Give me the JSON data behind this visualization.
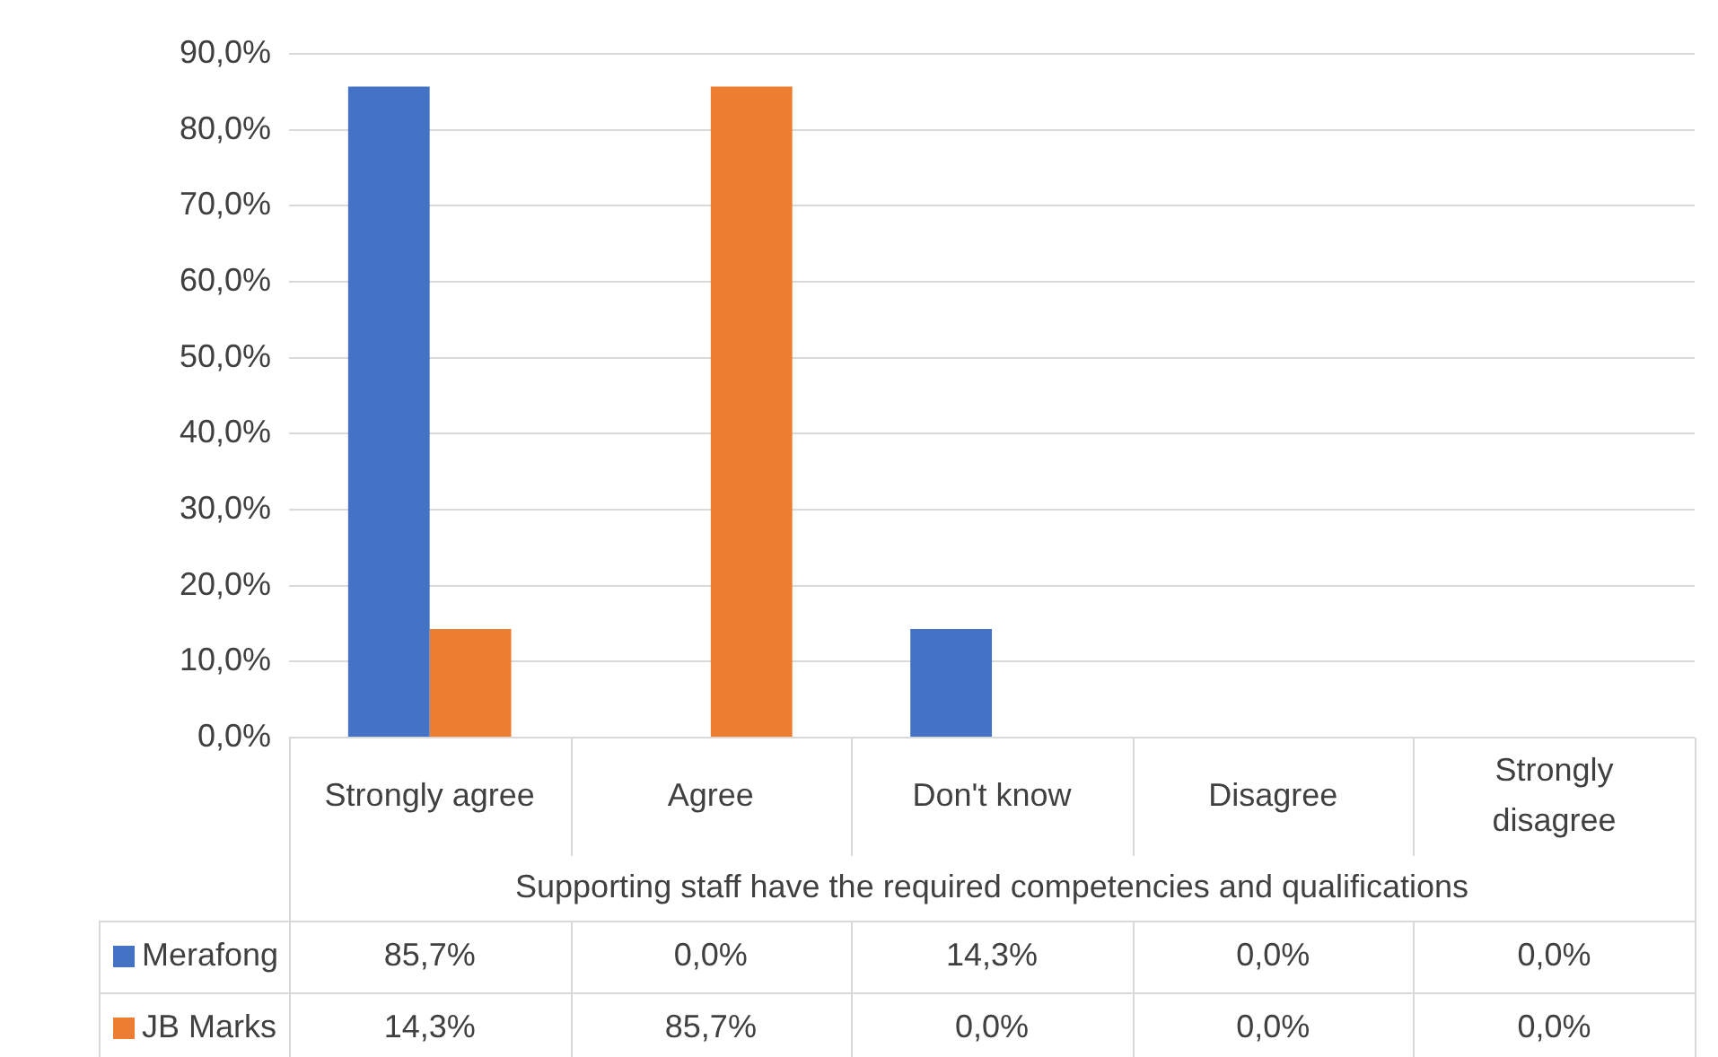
{
  "chart_data": {
    "type": "bar",
    "xlabel": "Supporting staff have the required competencies and qualifications",
    "categories": [
      "Strongly agree",
      "Agree",
      "Don't know",
      "Disagree",
      "Strongly disagree"
    ],
    "series": [
      {
        "name": "Merafong",
        "color": "#4472c4",
        "values": [
          85.7,
          0,
          14.3,
          0,
          0
        ],
        "value_labels": [
          "85,7%",
          "0,0%",
          "14,3%",
          "0,0%",
          "0,0%"
        ]
      },
      {
        "name": "JB Marks",
        "color": "#ed7d31",
        "values": [
          14.3,
          85.7,
          0,
          0,
          0
        ],
        "value_labels": [
          "14,3%",
          "85,7%",
          "0,0%",
          "0,0%",
          "0,0%"
        ]
      }
    ],
    "ylim": [
      0,
      90
    ],
    "yticks": [
      {
        "value": 0,
        "label": "0,0%"
      },
      {
        "value": 10,
        "label": "10,0%"
      },
      {
        "value": 20,
        "label": "20,0%"
      },
      {
        "value": 30,
        "label": "30,0%"
      },
      {
        "value": 40,
        "label": "40,0%"
      },
      {
        "value": 50,
        "label": "50,0%"
      },
      {
        "value": 60,
        "label": "60,0%"
      },
      {
        "value": 70,
        "label": "70,0%"
      },
      {
        "value": 80,
        "label": "80,0%"
      },
      {
        "value": 90,
        "label": "90,0%"
      }
    ],
    "grid": "y",
    "legend": "bottom"
  }
}
